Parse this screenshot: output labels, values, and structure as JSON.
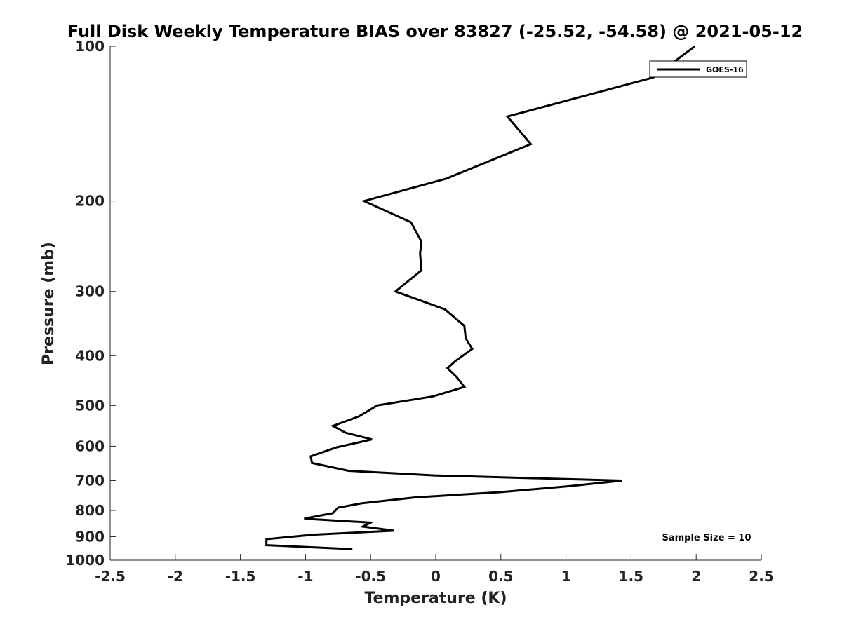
{
  "chart_data": {
    "type": "line",
    "title": "Full Disk Weekly Temperature BIAS over 83827 (-25.52, -54.58) @ 2021-05-12",
    "xlabel": "Temperature (K)",
    "ylabel": "Pressure (mb)",
    "xlim": [
      -2.5,
      2.5
    ],
    "ylim": [
      100,
      1000
    ],
    "y_scale": "log",
    "y_reversed": true,
    "grid": false,
    "legend_position": "top-right",
    "x_ticks": [
      "-2.5",
      "-2",
      "-1.5",
      "-1",
      "-0.5",
      "0",
      "0.5",
      "1",
      "1.5",
      "2",
      "2.5"
    ],
    "y_ticks": [
      "100",
      "200",
      "300",
      "400",
      "500",
      "600",
      "700",
      "800",
      "900",
      "1000"
    ],
    "annotation": "Sample Size = 10",
    "series": [
      {
        "name": "GOES-16",
        "color": "#000000",
        "points": [
          [
            1.99,
            100
          ],
          [
            1.67,
            115
          ],
          [
            0.55,
            137
          ],
          [
            0.73,
            155
          ],
          [
            0.08,
            181
          ],
          [
            -0.55,
            200
          ],
          [
            -0.19,
            220
          ],
          [
            -0.11,
            240
          ],
          [
            -0.12,
            253
          ],
          [
            -0.11,
            273
          ],
          [
            -0.31,
            300
          ],
          [
            0.07,
            325
          ],
          [
            0.22,
            350
          ],
          [
            0.23,
            370
          ],
          [
            0.28,
            388
          ],
          [
            0.15,
            410
          ],
          [
            0.09,
            423
          ],
          [
            0.16,
            440
          ],
          [
            0.22,
            460
          ],
          [
            -0.02,
            480
          ],
          [
            -0.45,
            500
          ],
          [
            -0.59,
            525
          ],
          [
            -0.79,
            548
          ],
          [
            -0.69,
            565
          ],
          [
            -0.49,
            582
          ],
          [
            -0.76,
            603
          ],
          [
            -0.96,
            628
          ],
          [
            -0.95,
            647
          ],
          [
            -0.67,
            670
          ],
          [
            -0.01,
            684
          ],
          [
            1.43,
            700
          ],
          [
            1.02,
            718
          ],
          [
            0.5,
            737
          ],
          [
            -0.16,
            755
          ],
          [
            -0.57,
            775
          ],
          [
            -0.75,
            790
          ],
          [
            -0.79,
            810
          ],
          [
            -1.01,
            830
          ],
          [
            -0.5,
            845
          ],
          [
            -0.56,
            860
          ],
          [
            -0.32,
            876
          ],
          [
            -0.94,
            892
          ],
          [
            -1.3,
            910
          ],
          [
            -1.3,
            935
          ],
          [
            -0.64,
            952
          ]
        ]
      }
    ]
  }
}
